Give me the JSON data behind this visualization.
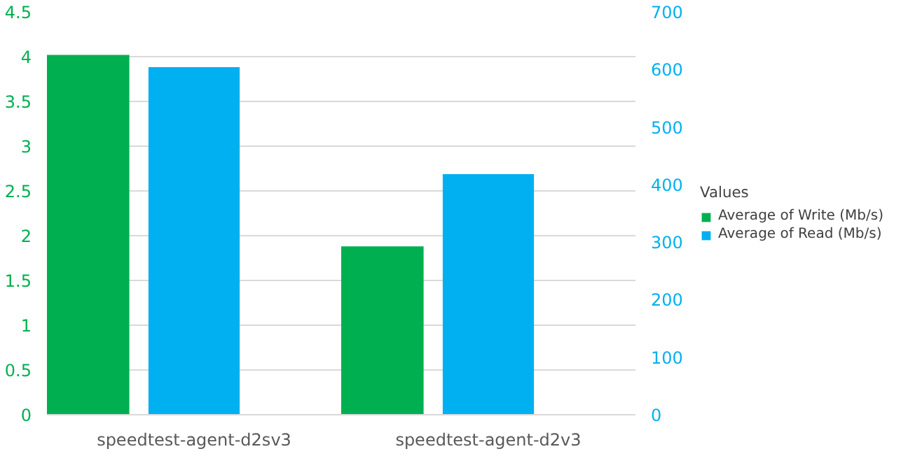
{
  "chart_data": {
    "type": "bar",
    "categories": [
      "speedtest-agent-d2sv3",
      "speedtest-agent-d2v3"
    ],
    "series": [
      {
        "name": "Average of Write (Mb/s)",
        "color": "#00b050",
        "values": [
          4.02,
          1.88
        ]
      },
      {
        "name": "Average of Read (Mb/s)",
        "color": "#00b0f0",
        "values": [
          604,
          418
        ],
        "axis": "y2"
      }
    ],
    "ylim": [
      0,
      4.5
    ],
    "yticks": [
      0,
      0.5,
      1,
      1.5,
      2,
      2.5,
      3,
      3.5,
      4,
      4.5
    ],
    "y2lim": [
      0,
      700
    ],
    "y2ticks": [
      0,
      100,
      200,
      300,
      400,
      500,
      600,
      700
    ],
    "legend_title": "Values",
    "legend": "right",
    "grid": "y"
  }
}
